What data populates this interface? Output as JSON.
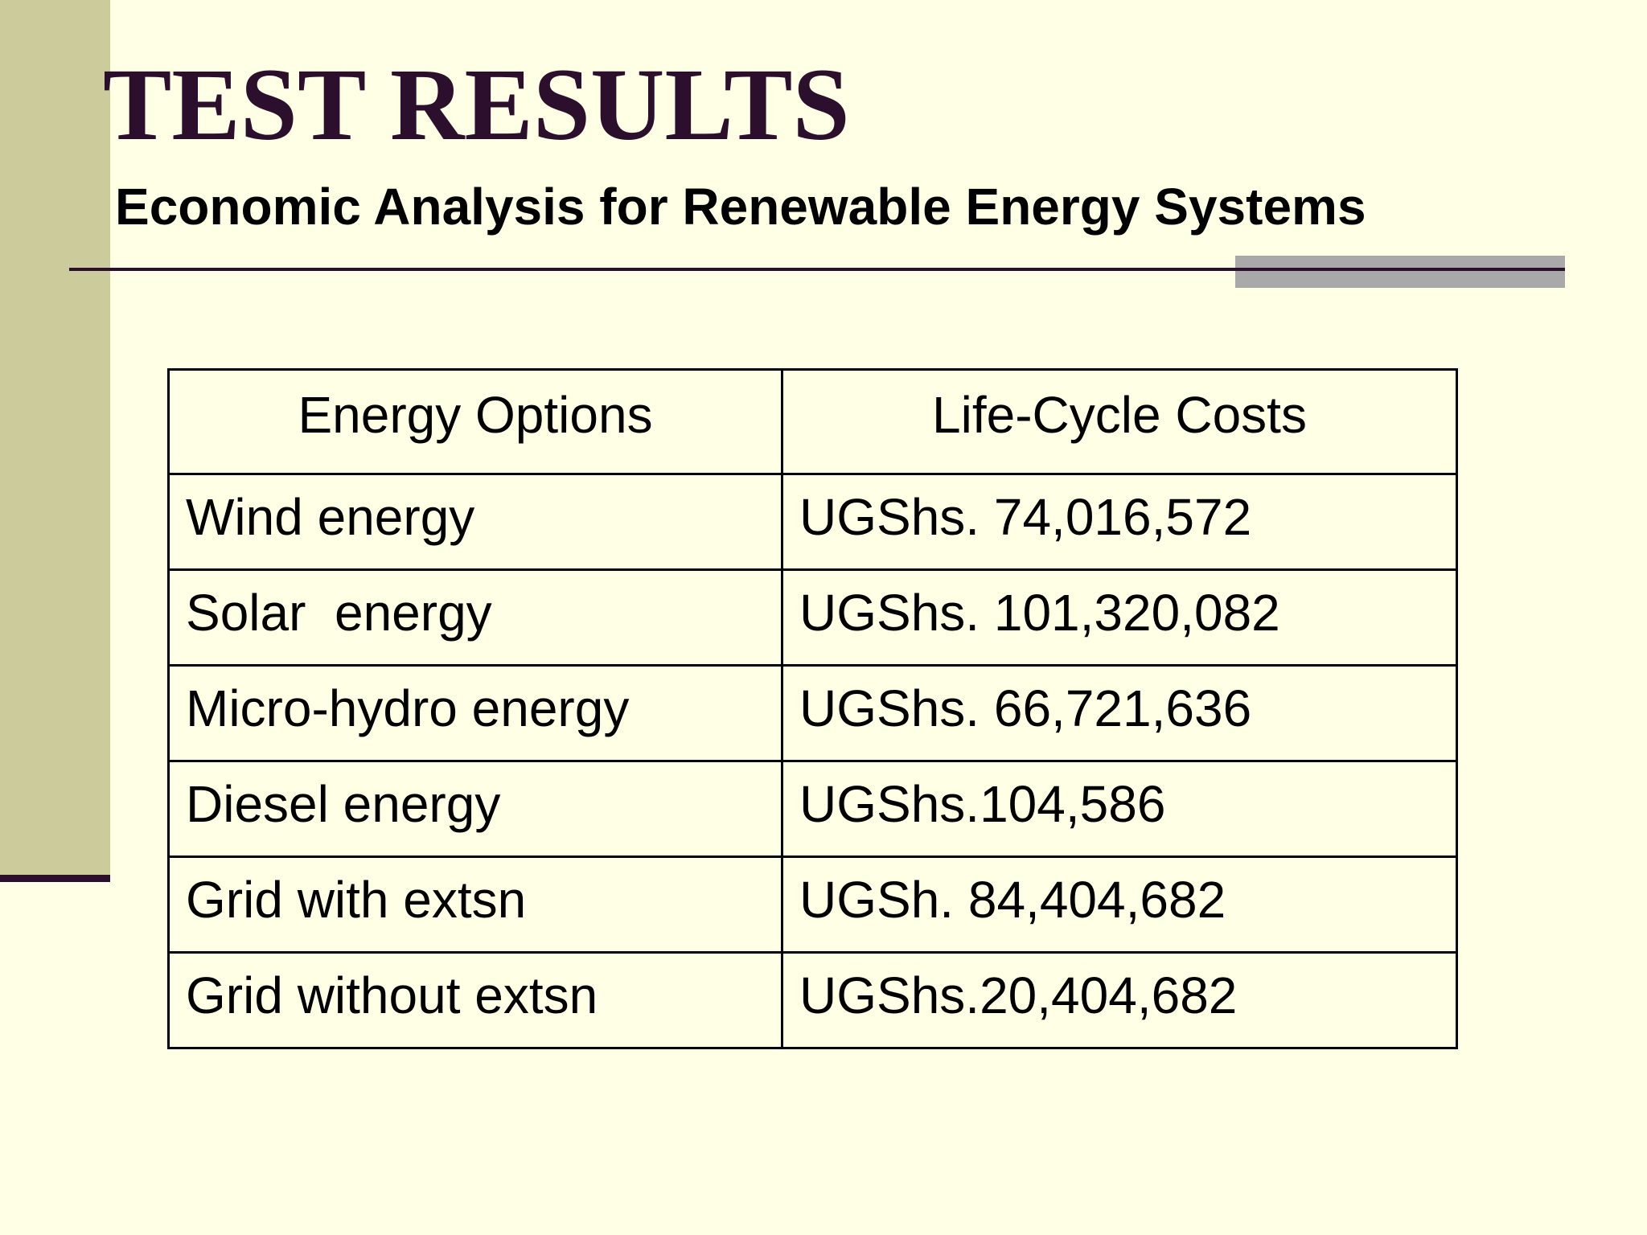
{
  "slide": {
    "title": "TEST RESULTS",
    "subtitle": "Economic Analysis for Renewable Energy Systems"
  },
  "table": {
    "headers": [
      "Energy Options",
      "Life-Cycle Costs"
    ],
    "rows": [
      [
        "Wind energy",
        "UGShs. 74,016,572"
      ],
      [
        "Solar  energy",
        "UGShs. 101,320,082"
      ],
      [
        "Micro-hydro energy",
        "UGShs. 66,721,636"
      ],
      [
        "Diesel energy",
        "UGShs.104,586"
      ],
      [
        "Grid with extsn",
        "UGSh. 84,404,682"
      ],
      [
        "Grid without extsn",
        "UGShs.20,404,682"
      ]
    ]
  },
  "colors": {
    "background": "#ffffe5",
    "side_bar": "#cbcb9b",
    "accent_dark": "#2c0f2c",
    "accent_gray": "#a9a9a9"
  }
}
